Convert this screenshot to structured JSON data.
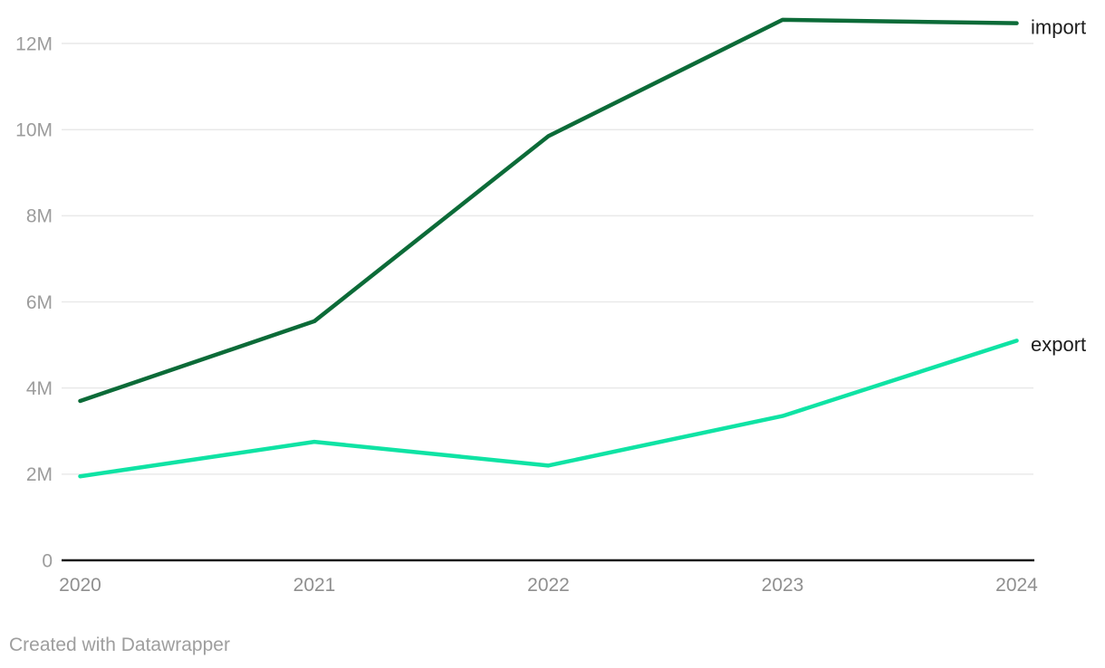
{
  "chart_data": {
    "type": "line",
    "x_ticks": [
      "2020",
      "2021",
      "2022",
      "2023",
      "2024"
    ],
    "y_ticks": [
      "0",
      "2M",
      "4M",
      "6M",
      "8M",
      "10M",
      "12M"
    ],
    "y_tick_values_millions": [
      0,
      2,
      4,
      6,
      8,
      10,
      12
    ],
    "unit": "millions",
    "ylim_millions": [
      0,
      13.0
    ],
    "grid": "horizontal",
    "legend_position": "line-end-labels",
    "series": [
      {
        "name": "import",
        "color": "#0c6b38",
        "values_millions": [
          3.7,
          5.55,
          9.85,
          12.55,
          12.47
        ]
      },
      {
        "name": "export",
        "color": "#0fe3a4",
        "values_millions": [
          1.95,
          2.75,
          2.2,
          3.35,
          5.1
        ]
      }
    ]
  },
  "colors": {
    "background": "#ffffff",
    "gridline": "#e9e9e9",
    "axis_baseline": "#1a1a1a",
    "y_tick_text": "#9c9c9c",
    "x_tick_text": "#8f8f8f",
    "series_label_text": "#1d1d1d",
    "attribution_text": "#9e9e9e"
  },
  "attribution": "Created with Datawrapper"
}
